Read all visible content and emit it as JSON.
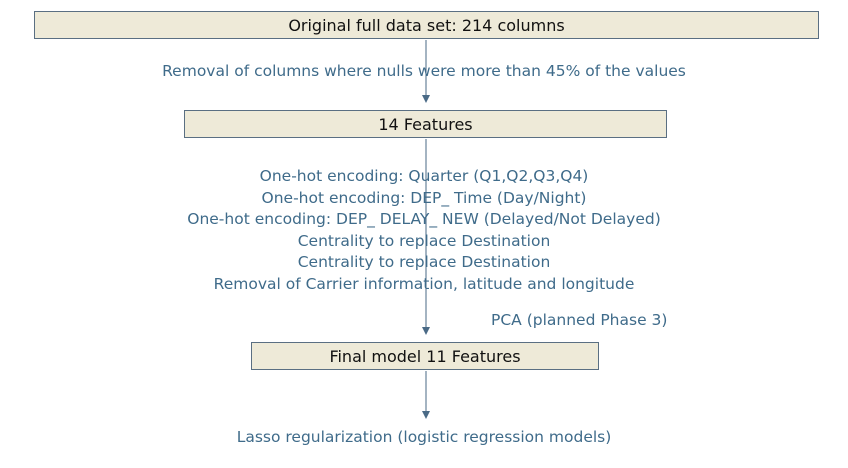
{
  "boxes": {
    "original": "Original full data set: 214 columns",
    "features14": "14 Features",
    "final": "Final model 11 Features"
  },
  "notes": {
    "removal": "Removal of columns where nulls were more than 45% of the values",
    "pca": "PCA (planned Phase 3)",
    "lasso": "Lasso regularization (logistic regression models)"
  },
  "steps": [
    "One-hot encoding: Quarter (Q1,Q2,Q3,Q4)",
    "One-hot encoding: DEP_ Time (Day/Night)",
    "One-hot encoding: DEP_ DELAY_ NEW (Delayed/Not Delayed)",
    "Centrality to replace Destination",
    "Centrality to replace Destination",
    "Removal of  Carrier information, latitude and longitude"
  ],
  "colors": {
    "box_fill": "#eeead8",
    "box_border": "#5a6f82",
    "annotation_text": "#3f6b8a",
    "arrow": "#4a6a86"
  }
}
